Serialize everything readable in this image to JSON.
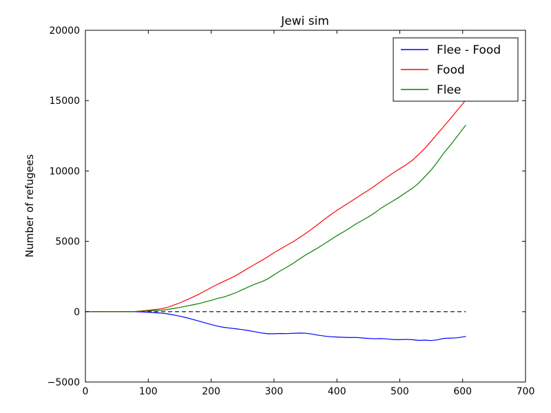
{
  "chart_data": {
    "type": "line",
    "title": "Jewi sim",
    "xlabel": "",
    "ylabel": "Number of refugees",
    "xlim": [
      0,
      700
    ],
    "ylim": [
      -5000,
      20000
    ],
    "x_ticks": [
      0,
      100,
      200,
      300,
      400,
      500,
      600,
      700
    ],
    "y_ticks": [
      -5000,
      0,
      5000,
      10000,
      15000,
      20000
    ],
    "x_tick_labels": [
      "0",
      "100",
      "200",
      "300",
      "400",
      "500",
      "600",
      "700"
    ],
    "y_tick_labels": [
      "−5000",
      "0",
      "5000",
      "10000",
      "15000",
      "20000"
    ],
    "grid": false,
    "legend_position": "top-right",
    "reference_line": {
      "y": 0,
      "x_range": [
        0,
        605
      ],
      "style": "dashed",
      "color": "#000000"
    },
    "x": [
      0,
      25,
      50,
      75,
      90,
      100,
      110,
      120,
      130,
      140,
      150,
      160,
      170,
      180,
      190,
      200,
      210,
      220,
      230,
      240,
      250,
      260,
      270,
      280,
      290,
      300,
      310,
      320,
      330,
      340,
      350,
      360,
      370,
      380,
      390,
      400,
      410,
      420,
      430,
      440,
      450,
      460,
      470,
      480,
      490,
      500,
      510,
      520,
      530,
      540,
      550,
      560,
      570,
      580,
      590,
      600,
      605
    ],
    "series": [
      {
        "name": "Flee - Food",
        "color": "#0000ff",
        "values": [
          0,
          0,
          0,
          0,
          -20,
          -40,
          -70,
          -100,
          -150,
          -230,
          -320,
          -420,
          -540,
          -660,
          -790,
          -910,
          -1030,
          -1110,
          -1170,
          -1220,
          -1280,
          -1350,
          -1430,
          -1510,
          -1570,
          -1570,
          -1550,
          -1560,
          -1540,
          -1520,
          -1530,
          -1590,
          -1670,
          -1730,
          -1780,
          -1800,
          -1820,
          -1840,
          -1830,
          -1870,
          -1900,
          -1920,
          -1910,
          -1940,
          -1980,
          -1990,
          -1970,
          -1990,
          -2040,
          -2020,
          -2050,
          -2000,
          -1900,
          -1880,
          -1860,
          -1800,
          -1760
        ]
      },
      {
        "name": "Food",
        "color": "#ff0000",
        "values": [
          0,
          0,
          0,
          0,
          50,
          100,
          150,
          200,
          300,
          460,
          620,
          820,
          1020,
          1230,
          1470,
          1710,
          1940,
          2150,
          2360,
          2580,
          2850,
          3120,
          3380,
          3630,
          3900,
          4190,
          4450,
          4710,
          4960,
          5250,
          5550,
          5870,
          6210,
          6560,
          6890,
          7200,
          7480,
          7770,
          8060,
          8350,
          8630,
          8940,
          9260,
          9570,
          9870,
          10160,
          10440,
          10760,
          11170,
          11620,
          12120,
          12650,
          13170,
          13690,
          14240,
          14770,
          15060
        ]
      },
      {
        "name": "Flee",
        "color": "#008000",
        "values": [
          0,
          0,
          0,
          0,
          30,
          60,
          80,
          100,
          150,
          230,
          300,
          390,
          480,
          570,
          690,
          800,
          940,
          1040,
          1190,
          1360,
          1570,
          1770,
          1960,
          2120,
          2330,
          2620,
          2900,
          3150,
          3420,
          3730,
          4020,
          4280,
          4540,
          4830,
          5110,
          5400,
          5660,
          5930,
          6230,
          6480,
          6730,
          7020,
          7350,
          7630,
          7890,
          8170,
          8470,
          8770,
          9130,
          9600,
          10070,
          10650,
          11270,
          11810,
          12380,
          12970,
          13260
        ]
      }
    ]
  }
}
